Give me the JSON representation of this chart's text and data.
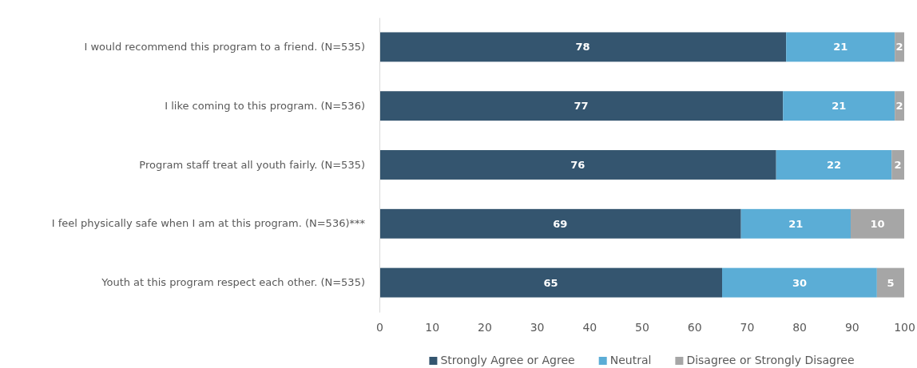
{
  "chart_data": {
    "type": "bar",
    "orientation": "horizontal",
    "stacked": true,
    "categories": [
      "I would recommend this program to a friend. (N=535)",
      "I like coming to this program. (N=536)",
      "Program staff treat all youth fairly. (N=535)",
      "I feel physically safe when I am at this program. (N=536)***",
      "Youth at this program respect each other. (N=535)"
    ],
    "series": [
      {
        "name": "Strongly Agree or Agree",
        "color": "#34556f",
        "values": [
          77.5,
          76.9,
          75.6,
          68.9,
          65.3
        ],
        "value_labels": [
          "78",
          "77",
          "76",
          "69",
          "65"
        ]
      },
      {
        "name": "Neutral",
        "color": "#5badd6",
        "values": [
          20.7,
          21.3,
          22.0,
          20.9,
          29.5
        ],
        "value_labels": [
          "21",
          "21",
          "22",
          "21",
          "30"
        ]
      },
      {
        "name": "Disagree or Strongly Disagree",
        "color": "#a6a6a6",
        "values": [
          1.8,
          1.8,
          2.4,
          10.2,
          5.2
        ],
        "value_labels": [
          "2",
          "2",
          "2",
          "10",
          "5"
        ]
      }
    ],
    "xlim": [
      0,
      100
    ],
    "xticks": [
      0,
      10,
      20,
      30,
      40,
      50,
      60,
      70,
      80,
      90,
      100
    ],
    "legend": "bottom"
  }
}
